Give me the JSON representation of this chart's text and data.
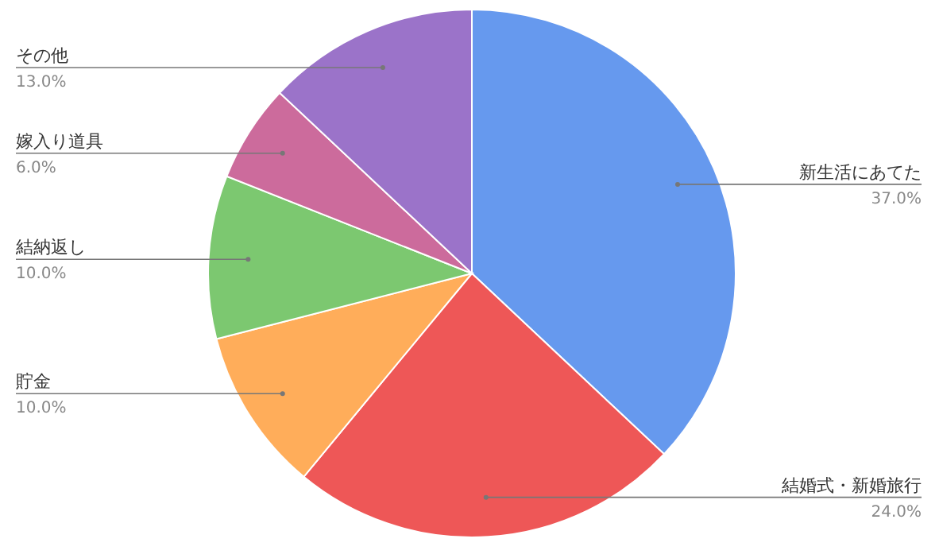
{
  "chart_data": {
    "type": "pie",
    "categories": [
      "新生活にあてた",
      "結婚式・新婚旅行",
      "貯金",
      "結納返し",
      "嫁入り道具",
      "その他"
    ],
    "values": [
      37,
      24,
      10,
      10,
      6,
      13
    ],
    "value_labels": [
      "37.0%",
      "24.0%",
      "10.0%",
      "10.0%",
      "6.0%",
      "13.0%"
    ],
    "colors": [
      "#6699ee",
      "#ee5757",
      "#ffad5a",
      "#7cc870",
      "#cc6b9c",
      "#9b73c9"
    ],
    "legend": false
  }
}
